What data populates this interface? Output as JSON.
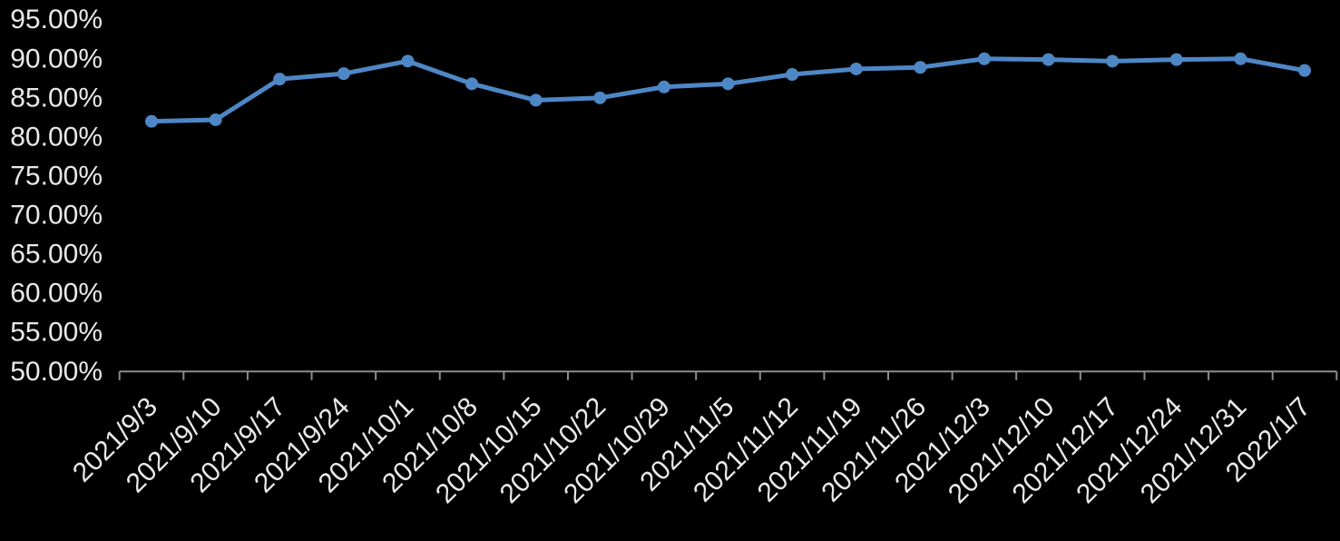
{
  "chart_data": {
    "type": "line",
    "title": "",
    "xlabel": "",
    "ylabel": "",
    "x": [
      "2021/9/3",
      "2021/9/10",
      "2021/9/17",
      "2021/9/24",
      "2021/10/1",
      "2021/10/8",
      "2021/10/15",
      "2021/10/22",
      "2021/10/29",
      "2021/11/5",
      "2021/11/12",
      "2021/11/19",
      "2021/11/26",
      "2021/12/3",
      "2021/12/10",
      "2021/12/17",
      "2021/12/24",
      "2021/12/31",
      "2022/1/7"
    ],
    "series": [
      {
        "values": [
          82.0,
          82.2,
          87.4,
          88.1,
          89.7,
          86.8,
          84.7,
          85.0,
          86.4,
          86.8,
          88.0,
          88.7,
          88.9,
          90.0,
          89.9,
          89.7,
          89.9,
          90.0,
          88.5
        ]
      }
    ],
    "ylim": [
      50,
      95
    ],
    "yticks": {
      "labels": [
        "95.00%",
        "90.00%",
        "85.00%",
        "80.00%",
        "75.00%",
        "70.00%",
        "65.00%",
        "60.00%",
        "55.00%",
        "50.00%"
      ],
      "values": [
        95,
        90,
        85,
        80,
        75,
        70,
        65,
        60,
        55,
        50
      ]
    },
    "value_format": "0.00%",
    "x_tick_rotation": 45,
    "grid": false,
    "legend": false,
    "marker": "circle",
    "colors": {
      "background": "#000000",
      "series": "#4E87C6",
      "axis": "#8C8C8C",
      "text": "#E9E9E9"
    }
  }
}
